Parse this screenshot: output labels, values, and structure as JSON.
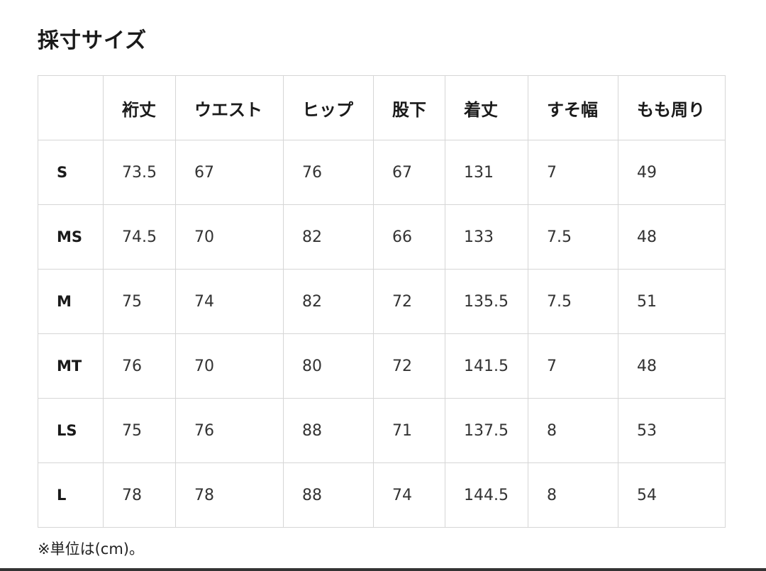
{
  "title": "採寸サイズ",
  "table": {
    "headers": [
      "",
      "裄丈",
      "ウエスト",
      "ヒップ",
      "股下",
      "着丈",
      "すそ幅",
      "もも周り"
    ],
    "rows": [
      [
        "S",
        "73.5",
        "67",
        "76",
        "67",
        "131",
        "7",
        "49"
      ],
      [
        "MS",
        "74.5",
        "70",
        "82",
        "66",
        "133",
        "7.5",
        "48"
      ],
      [
        "M",
        "75",
        "74",
        "82",
        "72",
        "135.5",
        "7.5",
        "51"
      ],
      [
        "MT",
        "76",
        "70",
        "80",
        "72",
        "141.5",
        "7",
        "48"
      ],
      [
        "LS",
        "75",
        "76",
        "88",
        "71",
        "137.5",
        "8",
        "53"
      ],
      [
        "L",
        "78",
        "78",
        "88",
        "74",
        "144.5",
        "8",
        "54"
      ]
    ]
  },
  "note": "※単位は(cm)。"
}
